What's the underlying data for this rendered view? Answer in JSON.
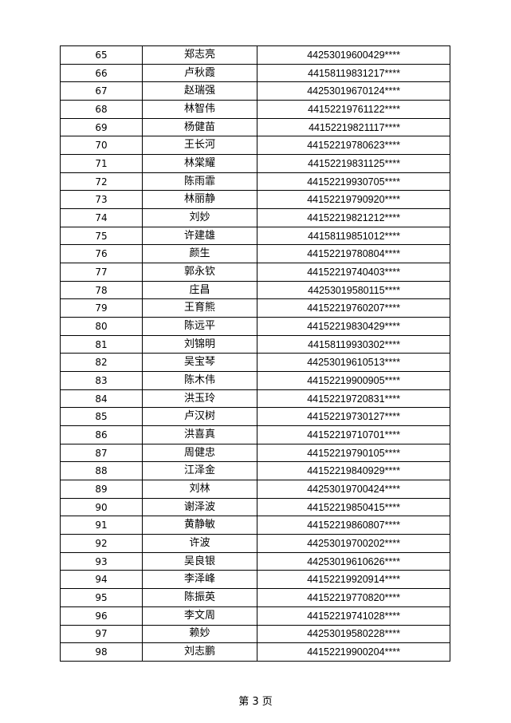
{
  "rows": [
    {
      "no": "65",
      "name": "郑志亮",
      "id": "44253019600429****"
    },
    {
      "no": "66",
      "name": "卢秋霞",
      "id": "44158119831217****"
    },
    {
      "no": "67",
      "name": "赵瑞强",
      "id": "44253019670124****"
    },
    {
      "no": "68",
      "name": "林智伟",
      "id": "44152219761122****"
    },
    {
      "no": "69",
      "name": "杨健苗",
      "id": "44152219821117****"
    },
    {
      "no": "70",
      "name": "王长河",
      "id": "44152219780623****"
    },
    {
      "no": "71",
      "name": "林棠耀",
      "id": "44152219831125****"
    },
    {
      "no": "72",
      "name": "陈雨霏",
      "id": "44152219930705****"
    },
    {
      "no": "73",
      "name": "林丽静",
      "id": "44152219790920****"
    },
    {
      "no": "74",
      "name": "刘妙",
      "id": "44152219821212****"
    },
    {
      "no": "75",
      "name": "许建雄",
      "id": "44158119851012****"
    },
    {
      "no": "76",
      "name": "颜生",
      "id": "44152219780804****"
    },
    {
      "no": "77",
      "name": "郭永钦",
      "id": "44152219740403****"
    },
    {
      "no": "78",
      "name": "庄昌",
      "id": "44253019580115****"
    },
    {
      "no": "79",
      "name": "王育熊",
      "id": "44152219760207****"
    },
    {
      "no": "80",
      "name": "陈远平",
      "id": "44152219830429****"
    },
    {
      "no": "81",
      "name": "刘锦明",
      "id": "44158119930302****"
    },
    {
      "no": "82",
      "name": "吴宝琴",
      "id": "44253019610513****"
    },
    {
      "no": "83",
      "name": "陈木伟",
      "id": "44152219900905****"
    },
    {
      "no": "84",
      "name": "洪玉玲",
      "id": "44152219720831****"
    },
    {
      "no": "85",
      "name": "卢汉树",
      "id": "44152219730127****"
    },
    {
      "no": "86",
      "name": "洪喜真",
      "id": "44152219710701****"
    },
    {
      "no": "87",
      "name": "周健忠",
      "id": "44152219790105****"
    },
    {
      "no": "88",
      "name": "江泽金",
      "id": "44152219840929****"
    },
    {
      "no": "89",
      "name": "刘林",
      "id": "44253019700424****"
    },
    {
      "no": "90",
      "name": "谢泽波",
      "id": "44152219850415****"
    },
    {
      "no": "91",
      "name": "黄静敏",
      "id": "44152219860807****"
    },
    {
      "no": "92",
      "name": "许波",
      "id": "44253019700202****"
    },
    {
      "no": "93",
      "name": "吴良银",
      "id": "44253019610626****"
    },
    {
      "no": "94",
      "name": "李泽峰",
      "id": "44152219920914****"
    },
    {
      "no": "95",
      "name": "陈振英",
      "id": "44152219770820****"
    },
    {
      "no": "96",
      "name": "李文周",
      "id": "44152219741028****"
    },
    {
      "no": "97",
      "name": "赖妙",
      "id": "44253019580228****"
    },
    {
      "no": "98",
      "name": "刘志鹏",
      "id": "44152219900204****"
    }
  ],
  "footer": {
    "page_label": "第 3 页"
  }
}
